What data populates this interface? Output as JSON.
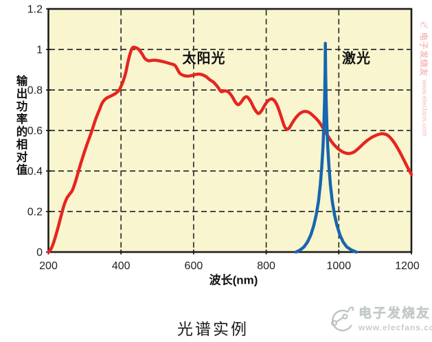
{
  "figure": {
    "caption": "光谱实例"
  },
  "chart_data": {
    "type": "line",
    "title": "光谱实例",
    "xlabel": "波长(nm)",
    "ylabel": "输出功率的相对值",
    "xlim": [
      200,
      1200
    ],
    "ylim": [
      0,
      1.2
    ],
    "grid": "dashed",
    "legend_position": "labels-inside-plot",
    "colors": {
      "plot_background": "#f8f5cf",
      "frame": "#1c1c1c",
      "gridline": "#2e2e2e",
      "sun_curve": "#e62520",
      "laser_curve": "#1766ae"
    },
    "x_ticks": [
      {
        "value": 200,
        "label": "200"
      },
      {
        "value": 400,
        "label": "400"
      },
      {
        "value": 600,
        "label": "600"
      },
      {
        "value": 800,
        "label": "800"
      },
      {
        "value": 1000,
        "label": "1000"
      },
      {
        "value": 1200,
        "label": "1200"
      }
    ],
    "y_ticks": [
      {
        "value": 0,
        "label": "0"
      },
      {
        "value": 0.2,
        "label": "0.2"
      },
      {
        "value": 0.4,
        "label": "0.4"
      },
      {
        "value": 0.6,
        "label": "0.6"
      },
      {
        "value": 0.8,
        "label": "0.8"
      },
      {
        "value": 1,
        "label": "1"
      },
      {
        "value": 1.2,
        "label": "1.2"
      }
    ],
    "series": [
      {
        "name": "太阳光",
        "color": "#e62520",
        "smooth": true,
        "points": [
          [
            200,
            0
          ],
          [
            207,
            0.015
          ],
          [
            215,
            0.05
          ],
          [
            224,
            0.105
          ],
          [
            233,
            0.165
          ],
          [
            242,
            0.225
          ],
          [
            250,
            0.263
          ],
          [
            258,
            0.285
          ],
          [
            266,
            0.305
          ],
          [
            274,
            0.345
          ],
          [
            283,
            0.4
          ],
          [
            293,
            0.46
          ],
          [
            305,
            0.525
          ],
          [
            318,
            0.59
          ],
          [
            330,
            0.655
          ],
          [
            340,
            0.7
          ],
          [
            348,
            0.735
          ],
          [
            358,
            0.757
          ],
          [
            372,
            0.77
          ],
          [
            385,
            0.783
          ],
          [
            395,
            0.8
          ],
          [
            404,
            0.835
          ],
          [
            412,
            0.878
          ],
          [
            420,
            0.945
          ],
          [
            427,
            0.99
          ],
          [
            433,
            1.01
          ],
          [
            442,
            1.008
          ],
          [
            450,
            0.998
          ],
          [
            458,
            0.978
          ],
          [
            466,
            0.955
          ],
          [
            476,
            0.944
          ],
          [
            490,
            0.947
          ],
          [
            505,
            0.944
          ],
          [
            520,
            0.938
          ],
          [
            535,
            0.93
          ],
          [
            548,
            0.922
          ],
          [
            556,
            0.9
          ],
          [
            562,
            0.882
          ],
          [
            572,
            0.872
          ],
          [
            583,
            0.868
          ],
          [
            596,
            0.872
          ],
          [
            610,
            0.878
          ],
          [
            622,
            0.876
          ],
          [
            634,
            0.866
          ],
          [
            645,
            0.85
          ],
          [
            655,
            0.838
          ],
          [
            666,
            0.816
          ],
          [
            676,
            0.792
          ],
          [
            686,
            0.796
          ],
          [
            696,
            0.79
          ],
          [
            706,
            0.768
          ],
          [
            715,
            0.74
          ],
          [
            723,
            0.727
          ],
          [
            731,
            0.74
          ],
          [
            740,
            0.762
          ],
          [
            748,
            0.765
          ],
          [
            757,
            0.744
          ],
          [
            766,
            0.712
          ],
          [
            774,
            0.69
          ],
          [
            780,
            0.684
          ],
          [
            788,
            0.7
          ],
          [
            797,
            0.728
          ],
          [
            806,
            0.748
          ],
          [
            815,
            0.756
          ],
          [
            824,
            0.744
          ],
          [
            833,
            0.712
          ],
          [
            842,
            0.664
          ],
          [
            850,
            0.622
          ],
          [
            857,
            0.606
          ],
          [
            864,
            0.614
          ],
          [
            872,
            0.638
          ],
          [
            882,
            0.664
          ],
          [
            893,
            0.684
          ],
          [
            905,
            0.694
          ],
          [
            917,
            0.69
          ],
          [
            930,
            0.672
          ],
          [
            943,
            0.648
          ],
          [
            955,
            0.617
          ],
          [
            968,
            0.578
          ],
          [
            980,
            0.545
          ],
          [
            992,
            0.52
          ],
          [
            1004,
            0.502
          ],
          [
            1016,
            0.49
          ],
          [
            1028,
            0.486
          ],
          [
            1040,
            0.492
          ],
          [
            1052,
            0.508
          ],
          [
            1065,
            0.53
          ],
          [
            1080,
            0.553
          ],
          [
            1095,
            0.57
          ],
          [
            1110,
            0.581
          ],
          [
            1122,
            0.584
          ],
          [
            1134,
            0.577
          ],
          [
            1146,
            0.556
          ],
          [
            1158,
            0.525
          ],
          [
            1170,
            0.487
          ],
          [
            1181,
            0.448
          ],
          [
            1191,
            0.413
          ],
          [
            1200,
            0.383
          ]
        ]
      },
      {
        "name": "激光",
        "color": "#1766ae",
        "smooth": false,
        "points": [
          [
            882,
            0
          ],
          [
            893,
            0.01
          ],
          [
            904,
            0.025
          ],
          [
            914,
            0.05
          ],
          [
            923,
            0.085
          ],
          [
            931,
            0.13
          ],
          [
            938,
            0.185
          ],
          [
            944,
            0.25
          ],
          [
            949,
            0.33
          ],
          [
            953,
            0.42
          ],
          [
            956.5,
            0.52
          ],
          [
            959,
            0.63
          ],
          [
            961,
            0.76
          ],
          [
            962.3,
            0.9
          ],
          [
            963,
            1.03
          ],
          [
            963.7,
            0.9
          ],
          [
            965,
            0.76
          ],
          [
            967,
            0.63
          ],
          [
            969.5,
            0.52
          ],
          [
            973,
            0.42
          ],
          [
            977,
            0.33
          ],
          [
            982,
            0.25
          ],
          [
            988,
            0.185
          ],
          [
            995,
            0.13
          ],
          [
            1003,
            0.085
          ],
          [
            1012,
            0.05
          ],
          [
            1022,
            0.025
          ],
          [
            1035,
            0.01
          ],
          [
            1048,
            0
          ]
        ]
      }
    ]
  },
  "watermark": {
    "brand": "电子发烧友",
    "site": "www.elecfans.com"
  },
  "side_watermark": {
    "brand": "电子发烧友",
    "site": "www.elecfans.com"
  }
}
